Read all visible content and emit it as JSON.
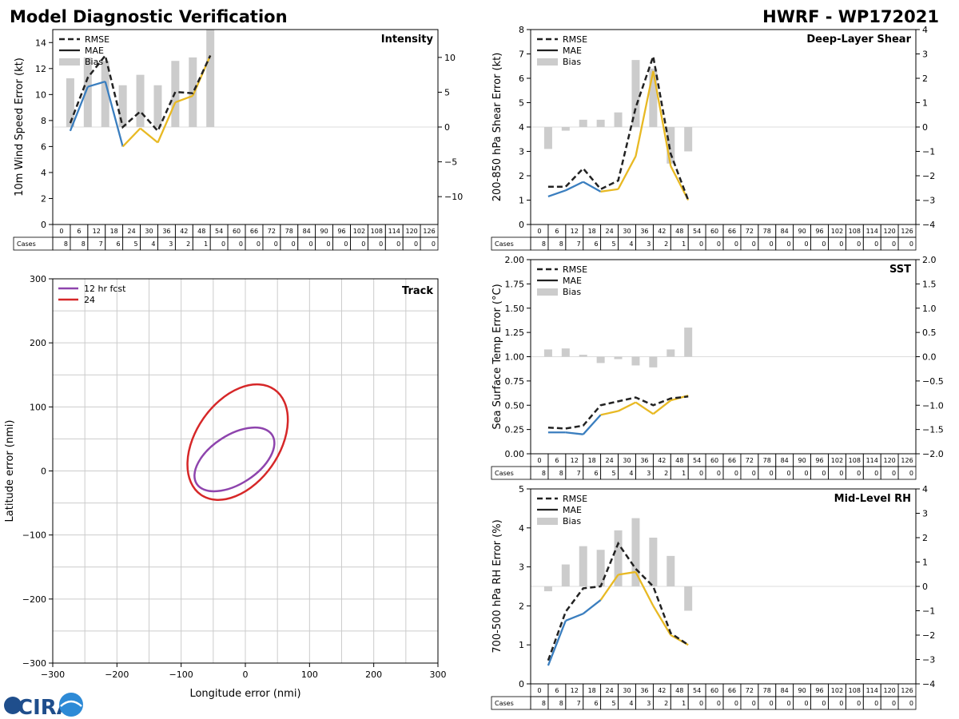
{
  "header": {
    "title": "Model Diagnostic Verification",
    "subtitle": "HWRF - WP172021"
  },
  "logo_text": "CIRA",
  "colors": {
    "rmse": "#222222",
    "mae_early": "#3a7ebf",
    "mae_late": "#e8b923",
    "bias": "#cccccc",
    "grid": "#cccccc",
    "track_12": "#8e44ad",
    "track_24": "#d62728"
  },
  "legend_labels": [
    "RMSE",
    "MAE",
    "Bias"
  ],
  "table": {
    "hours": [
      "0",
      "6",
      "12",
      "18",
      "24",
      "30",
      "36",
      "42",
      "48",
      "54",
      "60",
      "66",
      "72",
      "78",
      "84",
      "90",
      "96",
      "102",
      "108",
      "114",
      "120",
      "126"
    ],
    "cases": [
      "8",
      "8",
      "7",
      "6",
      "5",
      "4",
      "3",
      "2",
      "1",
      "0",
      "0",
      "0",
      "0",
      "0",
      "0",
      "0",
      "0",
      "0",
      "0",
      "0",
      "0",
      "0"
    ],
    "cases_label": "Cases"
  },
  "chart_data": [
    {
      "type": "line",
      "id": "intensity",
      "title": "Intensity",
      "ylabel": "10m Wind Speed Error (kt)",
      "ylim": [
        0,
        15
      ],
      "yticks": [
        0,
        2,
        4,
        6,
        8,
        10,
        12,
        14
      ],
      "y2lim": [
        -14,
        14
      ],
      "y2ticks": [
        10,
        5,
        0,
        -5,
        -10
      ],
      "y2ticklabels": [
        "10",
        "5",
        "0",
        "−5",
        "−10"
      ],
      "x": [
        0,
        6,
        12,
        18,
        24,
        30,
        36,
        42,
        48
      ],
      "rmse": [
        7.8,
        11.3,
        13.0,
        7.5,
        8.7,
        7.2,
        10.2,
        10.1,
        13.0
      ],
      "mae": [
        7.2,
        10.6,
        11.0,
        6.0,
        7.4,
        6.3,
        9.4,
        9.9,
        13.0
      ],
      "bias": [
        7.0,
        10.0,
        9.5,
        6.0,
        7.5,
        6.0,
        9.5,
        10.0,
        14.0
      ]
    },
    {
      "type": "line",
      "id": "shear",
      "title": "Deep-Layer Shear",
      "ylabel": "200-850 hPa Shear Error (kt)",
      "ylim": [
        0,
        8
      ],
      "yticks": [
        0,
        1,
        2,
        3,
        4,
        5,
        6,
        7,
        8
      ],
      "y2lim": [
        -4,
        4
      ],
      "y2ticks": [
        4,
        3,
        2,
        1,
        0,
        -1,
        -2,
        -3,
        -4
      ],
      "y2ticklabels": [
        "4",
        "3",
        "2",
        "1",
        "0",
        "−1",
        "−2",
        "−3",
        "−4"
      ],
      "x": [
        0,
        6,
        12,
        18,
        24,
        30,
        36,
        42,
        48
      ],
      "rmse": [
        1.55,
        1.55,
        2.3,
        1.45,
        1.8,
        4.8,
        6.9,
        2.9,
        1.0
      ],
      "mae": [
        1.15,
        1.4,
        1.75,
        1.35,
        1.45,
        2.8,
        6.3,
        2.4,
        1.0
      ],
      "bias": [
        -0.9,
        -0.15,
        0.3,
        0.3,
        0.6,
        2.75,
        2.4,
        -1.5,
        -1.0
      ]
    },
    {
      "type": "line",
      "id": "sst",
      "title": "SST",
      "ylabel": "Sea Surface Temp Error (°C)",
      "ylim": [
        0,
        2
      ],
      "yticks": [
        0,
        0.25,
        0.5,
        0.75,
        1.0,
        1.25,
        1.5,
        1.75,
        2.0
      ],
      "yticklabels": [
        "0.00",
        "0.25",
        "0.50",
        "0.75",
        "1.00",
        "1.25",
        "1.50",
        "1.75",
        "2.00"
      ],
      "y2lim": [
        -2,
        2
      ],
      "y2ticks": [
        2,
        1.5,
        1,
        0.5,
        0,
        -0.5,
        -1,
        -1.5,
        -2
      ],
      "y2ticklabels": [
        "2.0",
        "1.5",
        "1.0",
        "0.5",
        "0.0",
        "−0.5",
        "−1.0",
        "−1.5",
        "−2.0"
      ],
      "x": [
        0,
        6,
        12,
        18,
        24,
        30,
        36,
        42,
        48
      ],
      "rmse": [
        0.27,
        0.26,
        0.29,
        0.5,
        0.54,
        0.58,
        0.5,
        0.57,
        0.59
      ],
      "mae": [
        0.22,
        0.22,
        0.2,
        0.4,
        0.44,
        0.53,
        0.41,
        0.55,
        0.6
      ],
      "bias": [
        0.15,
        0.17,
        0.04,
        -0.13,
        -0.05,
        -0.18,
        -0.22,
        0.15,
        0.6
      ]
    },
    {
      "type": "line",
      "id": "rh",
      "title": "Mid-Level RH",
      "ylabel": "700-500 hPa RH Error (%)",
      "ylim": [
        0,
        5
      ],
      "yticks": [
        0,
        1,
        2,
        3,
        4,
        5
      ],
      "y2lim": [
        -4,
        4
      ],
      "y2ticks": [
        4,
        3,
        2,
        1,
        0,
        -1,
        -2,
        -3,
        -4
      ],
      "y2ticklabels": [
        "4",
        "3",
        "2",
        "1",
        "0",
        "−1",
        "−2",
        "−3",
        "−4"
      ],
      "x": [
        0,
        6,
        12,
        18,
        24,
        30,
        36,
        42,
        48
      ],
      "rmse": [
        0.6,
        1.85,
        2.45,
        2.5,
        3.6,
        2.95,
        2.5,
        1.3,
        1.0
      ],
      "mae": [
        0.47,
        1.62,
        1.8,
        2.15,
        2.8,
        2.87,
        2.0,
        1.25,
        1.0
      ],
      "bias": [
        -0.2,
        0.9,
        1.65,
        1.5,
        2.3,
        2.8,
        2.0,
        1.25,
        -1.0
      ]
    },
    {
      "type": "scatter",
      "id": "track",
      "title": "Track",
      "xlabel": "Longitude error (nmi)",
      "ylabel": "Latitude error (nmi)",
      "xlim": [
        -300,
        300
      ],
      "ylim": [
        -300,
        300
      ],
      "xticks": [
        -300,
        -200,
        -100,
        0,
        100,
        200,
        300
      ],
      "xticklabels": [
        "−300",
        "−200",
        "−100",
        "0",
        "100",
        "200",
        "300"
      ],
      "yticks": [
        -300,
        -200,
        -100,
        0,
        100,
        200,
        300
      ],
      "yticklabels": [
        "−300",
        "−200",
        "−100",
        "0",
        "100",
        "200",
        "300"
      ],
      "legend": [
        "12 hr fcst",
        "24"
      ],
      "ellipses": [
        {
          "label": "12 hr fcst",
          "cx": -17,
          "cy": 18,
          "rx": 70,
          "ry": 38,
          "angle": 33
        },
        {
          "label": "24",
          "cx": -12,
          "cy": 45,
          "rx": 100,
          "ry": 65,
          "angle": 55
        }
      ]
    }
  ]
}
